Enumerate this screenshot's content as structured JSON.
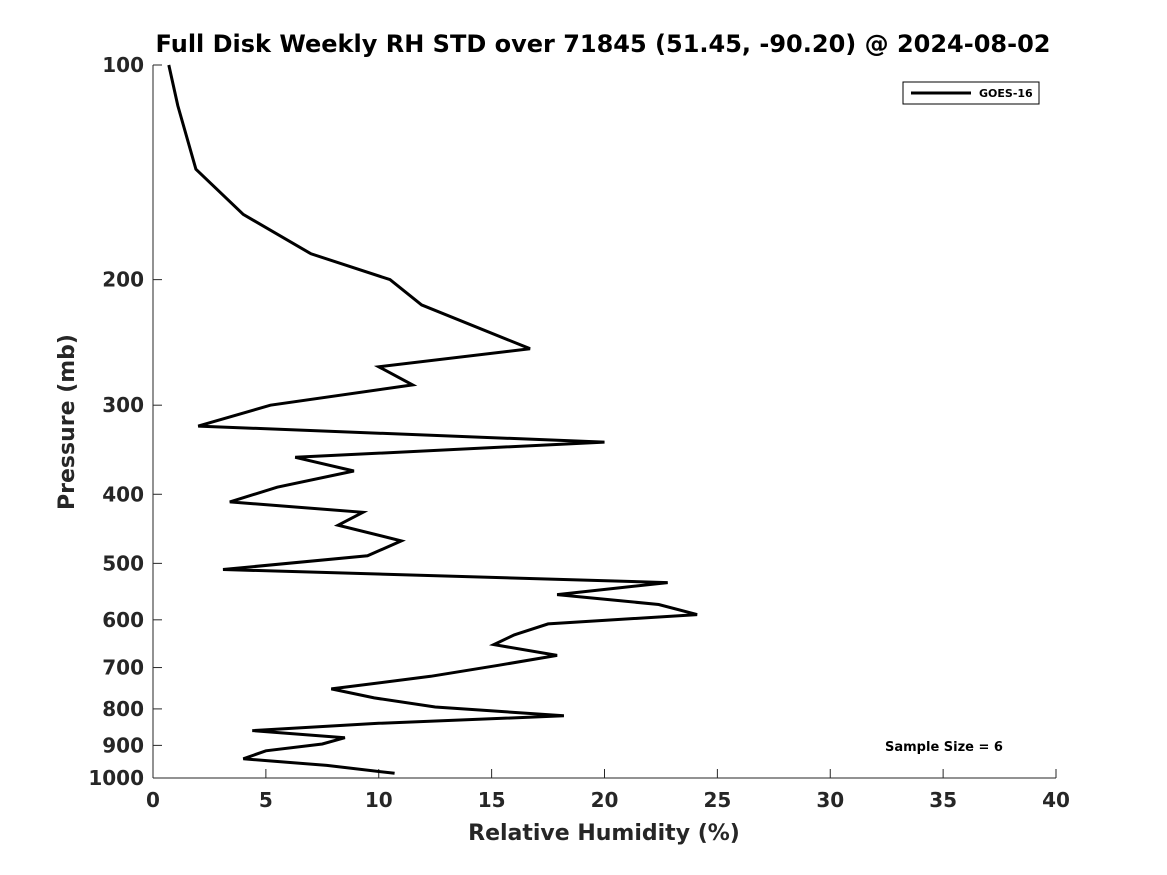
{
  "chart_data": {
    "type": "line",
    "title": "Full Disk Weekly RH STD over 71845 (51.45, -90.20) @ 2024-08-02",
    "xlabel": "Relative Humidity (%)",
    "ylabel": "Pressure (mb)",
    "xlim": [
      0,
      40
    ],
    "ylim": [
      100,
      1000
    ],
    "yscale": "log",
    "y_reversed": true,
    "xticks": [
      0,
      5,
      10,
      15,
      20,
      25,
      30,
      35,
      40
    ],
    "yticks": [
      100,
      200,
      300,
      400,
      500,
      600,
      700,
      800,
      900,
      1000
    ],
    "legend_position": "top-right",
    "annotation": "Sample Size = 6",
    "series": [
      {
        "name": "GOES-16",
        "color": "#000000",
        "x": [
          0.7,
          1.1,
          1.9,
          4.0,
          7.0,
          10.5,
          11.9,
          16.7,
          10.0,
          11.5,
          5.2,
          2.0,
          20.0,
          6.3,
          8.9,
          5.5,
          3.4,
          9.3,
          8.2,
          11.0,
          9.5,
          3.1,
          22.8,
          17.9,
          22.4,
          24.1,
          17.5,
          16.0,
          15.1,
          17.9,
          15.3,
          12.3,
          7.9,
          9.8,
          12.5,
          18.2,
          10.0,
          4.4,
          8.5,
          7.5,
          5.0,
          4.0,
          7.7,
          10.7
        ],
        "y": [
          100,
          114,
          140,
          162,
          184,
          200,
          217,
          250,
          265,
          281,
          300,
          321,
          338,
          355,
          371,
          391,
          410,
          424,
          442,
          465,
          488,
          510,
          532,
          553,
          571,
          590,
          608,
          630,
          650,
          673,
          695,
          720,
          750,
          772,
          795,
          818,
          838,
          858,
          878,
          896,
          916,
          940,
          960,
          985
        ]
      }
    ]
  }
}
